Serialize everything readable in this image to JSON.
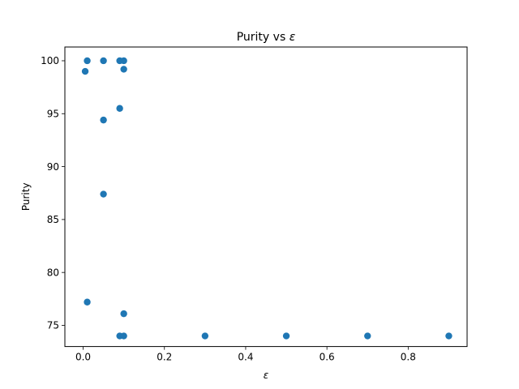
{
  "chart_data": {
    "type": "scatter",
    "title": "Purity vs ",
    "title_symbol": "ε",
    "xlabel": "ε",
    "ylabel": "Purity",
    "xlim": [
      -0.045,
      0.945
    ],
    "ylim": [
      73.0,
      101.3
    ],
    "xticks": [
      0.0,
      0.2,
      0.4,
      0.6,
      0.8
    ],
    "xtick_labels": [
      "0.0",
      "0.2",
      "0.4",
      "0.6",
      "0.8"
    ],
    "yticks": [
      75,
      80,
      85,
      90,
      95,
      100
    ],
    "ytick_labels": [
      "75",
      "80",
      "85",
      "90",
      "95",
      "100"
    ],
    "grid": false,
    "marker_color": "#1f77b4",
    "points": [
      {
        "x": 0.005,
        "y": 99.0
      },
      {
        "x": 0.01,
        "y": 100.0
      },
      {
        "x": 0.01,
        "y": 77.2
      },
      {
        "x": 0.05,
        "y": 100.0
      },
      {
        "x": 0.05,
        "y": 94.4
      },
      {
        "x": 0.05,
        "y": 87.4
      },
      {
        "x": 0.09,
        "y": 100.0
      },
      {
        "x": 0.09,
        "y": 95.5
      },
      {
        "x": 0.09,
        "y": 74.0
      },
      {
        "x": 0.1,
        "y": 100.0
      },
      {
        "x": 0.1,
        "y": 99.2
      },
      {
        "x": 0.1,
        "y": 76.1
      },
      {
        "x": 0.1,
        "y": 74.0
      },
      {
        "x": 0.3,
        "y": 74.0
      },
      {
        "x": 0.5,
        "y": 74.0
      },
      {
        "x": 0.7,
        "y": 74.0
      },
      {
        "x": 0.9,
        "y": 74.0
      }
    ]
  }
}
